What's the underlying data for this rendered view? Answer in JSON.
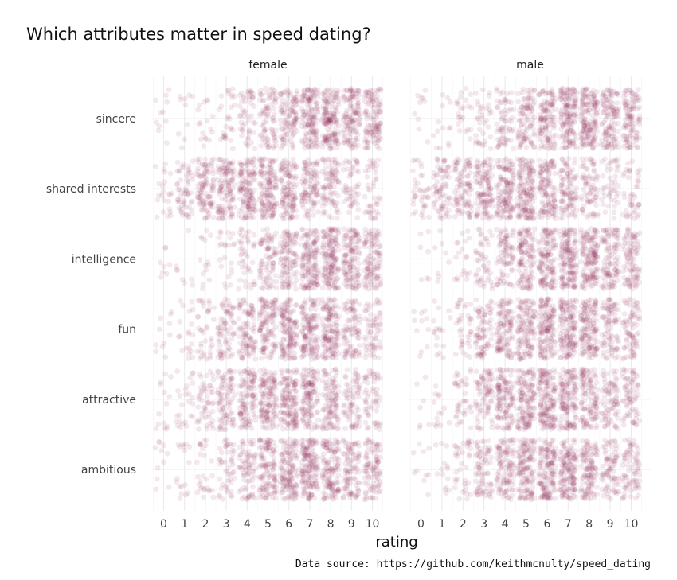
{
  "chart_data": {
    "type": "scatter",
    "title": "Which attributes matter in speed dating?",
    "xlabel": "rating",
    "ylabel": "",
    "caption": "Data source: https://github.com/keithmcnulty/speed_dating",
    "facets": [
      "female",
      "male"
    ],
    "categories": [
      "ambitious",
      "attractive",
      "fun",
      "intelligence",
      "shared interests",
      "sincere"
    ],
    "x_ticks": [
      0,
      1,
      2,
      3,
      4,
      5,
      6,
      7,
      8,
      9,
      10
    ],
    "xlim": [
      -0.5,
      10.5
    ],
    "jitter": "points jittered horizontally and vertically around each integer rating",
    "grid": true,
    "point_color": "#8b1a4a",
    "relative_density": {
      "female": {
        "sincere": [
          0.04,
          0.03,
          0.08,
          0.16,
          0.3,
          0.5,
          0.68,
          0.9,
          1.0,
          0.8,
          0.75
        ],
        "shared interests": [
          0.12,
          0.35,
          0.65,
          0.75,
          0.85,
          0.9,
          0.78,
          0.65,
          0.55,
          0.3,
          0.25
        ],
        "intelligence": [
          0.02,
          0.02,
          0.06,
          0.12,
          0.25,
          0.5,
          0.68,
          0.92,
          1.0,
          0.8,
          0.7
        ],
        "fun": [
          0.04,
          0.1,
          0.22,
          0.45,
          0.6,
          0.75,
          0.88,
          0.85,
          0.9,
          0.55,
          0.4
        ],
        "attractive": [
          0.06,
          0.14,
          0.3,
          0.55,
          0.72,
          0.85,
          0.92,
          0.8,
          0.68,
          0.45,
          0.35
        ],
        "ambitious": [
          0.04,
          0.08,
          0.16,
          0.3,
          0.48,
          0.78,
          0.88,
          1.0,
          0.85,
          0.6,
          0.6
        ]
      },
      "male": {
        "sincere": [
          0.03,
          0.06,
          0.12,
          0.2,
          0.4,
          0.6,
          0.75,
          0.95,
          1.0,
          0.75,
          0.68
        ],
        "shared interests": [
          0.22,
          0.45,
          0.6,
          0.75,
          0.85,
          1.0,
          0.8,
          0.62,
          0.45,
          0.26,
          0.25
        ],
        "intelligence": [
          0.01,
          0.02,
          0.1,
          0.28,
          0.5,
          0.78,
          0.85,
          1.0,
          0.95,
          0.68,
          0.6
        ],
        "fun": [
          0.04,
          0.08,
          0.22,
          0.48,
          0.7,
          0.8,
          0.9,
          0.92,
          0.9,
          0.55,
          0.48
        ],
        "attractive": [
          0.01,
          0.06,
          0.22,
          0.5,
          0.78,
          0.9,
          1.0,
          0.9,
          0.75,
          0.5,
          0.45
        ],
        "ambitious": [
          0.03,
          0.06,
          0.22,
          0.48,
          0.7,
          0.9,
          0.92,
          0.95,
          0.75,
          0.5,
          0.48
        ]
      }
    }
  }
}
